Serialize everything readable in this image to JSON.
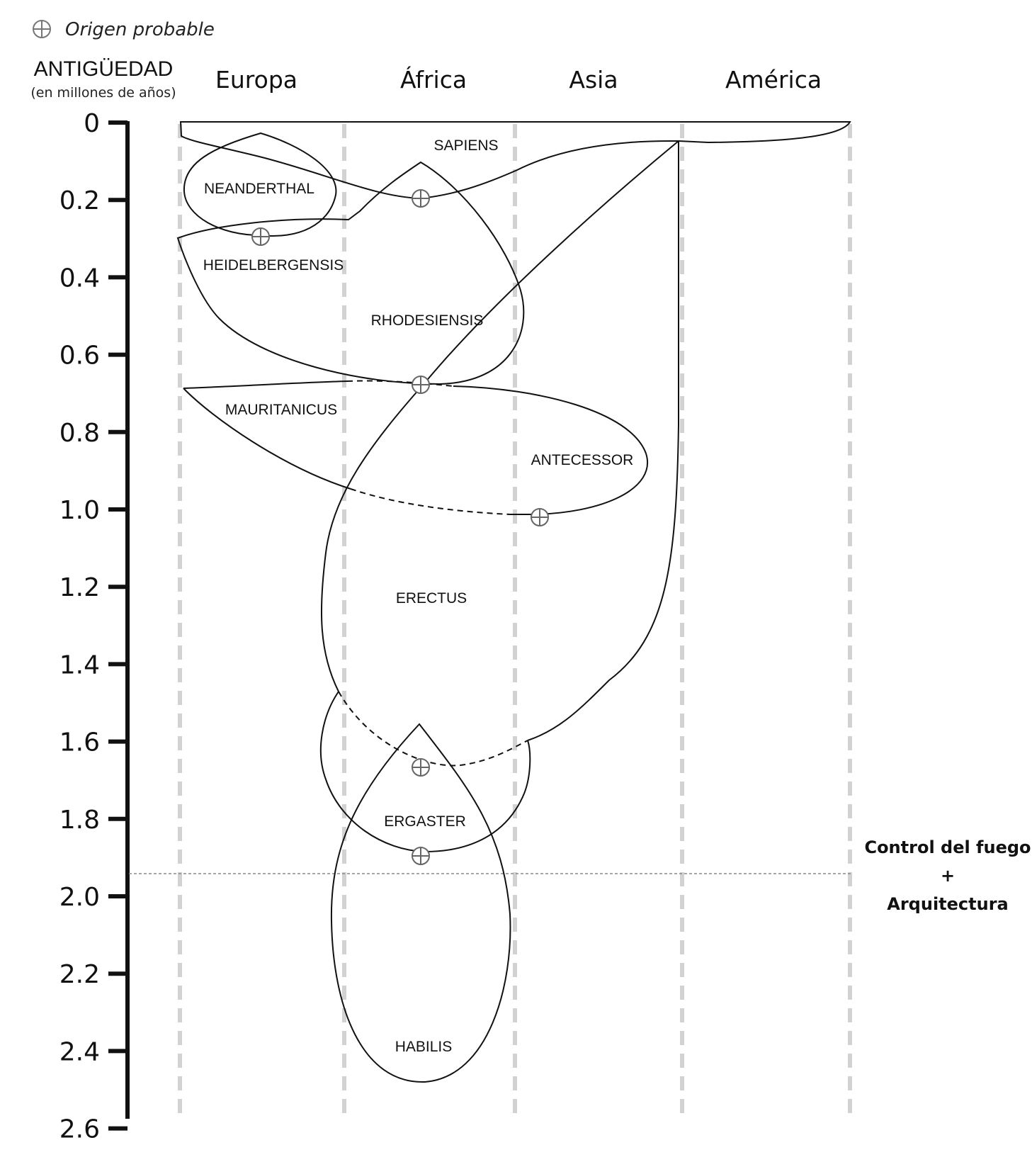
{
  "legend": {
    "label": "Origen probable",
    "icon": "circle-cross-icon"
  },
  "axis": {
    "title": "ANTIGÜEDAD",
    "subtitle": "(en millones de años)",
    "ticks": [
      "0",
      "0.2",
      "0.4",
      "0.6",
      "0.8",
      "1.0",
      "1.2",
      "1.4",
      "1.6",
      "1.8",
      "2.0",
      "2.2",
      "2.4",
      "2.6"
    ]
  },
  "regions": [
    "Europa",
    "África",
    "Asia",
    "América"
  ],
  "species": {
    "sapiens": "SAPIENS",
    "neanderthal": "NEANDERTHAL",
    "heidelbergensis": "HEIDELBERGENSIS",
    "rhodesiensis": "RHODESIENSIS",
    "mauritanicus": "MAURITANICUS",
    "antecessor": "ANTECESSOR",
    "erectus": "ERECTUS",
    "ergaster": "ERGASTER",
    "habilis": "HABILIS"
  },
  "annotation": {
    "line1": "Control del fuego",
    "line2": "+",
    "line3": "Arquitectura"
  },
  "colors": {
    "ink": "#111111",
    "guides": "#d2d2d2",
    "threshold": "#8a8a8a"
  }
}
